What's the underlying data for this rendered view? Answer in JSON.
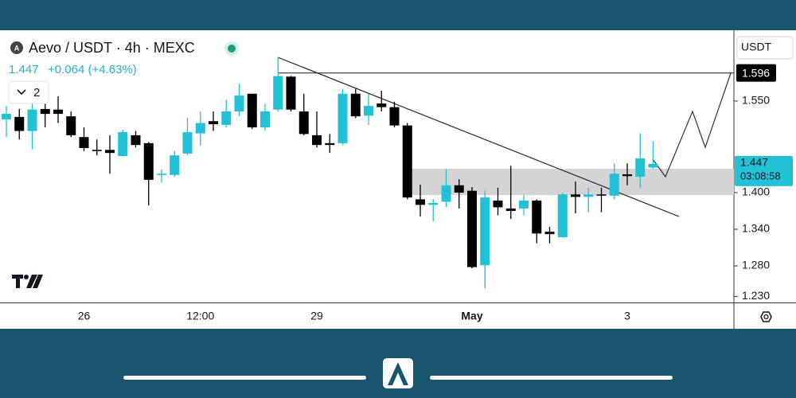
{
  "chart_data": {
    "type": "candlestick",
    "title": "Aevo / USDT · 4h · MEXC",
    "last_price": "1.447",
    "change": "+0.064 (+4.63%)",
    "indicator_count": "2",
    "currency": "USDT",
    "countdown": "03:08:58",
    "up_color": "#22c1d6",
    "down_color": "#000000",
    "categories": [
      null,
      null,
      null,
      null,
      null,
      null,
      "26",
      null,
      null,
      null,
      null,
      null,
      null,
      null,
      null,
      "12:00",
      null,
      null,
      null,
      null,
      null,
      null,
      null,
      null,
      "29",
      null,
      null,
      null,
      null,
      null,
      null,
      null,
      null,
      null,
      null,
      null,
      "May",
      null,
      null,
      null,
      null,
      null,
      null,
      null,
      null,
      null,
      null,
      null,
      "3",
      null,
      null
    ],
    "open": [
      1.52,
      1.524,
      1.501,
      1.537,
      1.536,
      1.525,
      1.491,
      1.47,
      1.47,
      1.46,
      1.494,
      1.481,
      1.429,
      1.429,
      1.464,
      1.497,
      1.517,
      1.511,
      1.533,
      1.562,
      1.507,
      1.536,
      1.59,
      1.533,
      1.494,
      1.481,
      1.481,
      1.562,
      1.526,
      1.546,
      1.54,
      1.51,
      1.389,
      1.38,
      1.385,
      1.412,
      1.403,
      1.281,
      1.387,
      1.374,
      1.374,
      1.387,
      1.336,
      1.327,
      1.397,
      1.393,
      1.397,
      1.395,
      1.43,
      1.426,
      1.441
    ],
    "high": [
      1.542,
      1.537,
      1.549,
      1.549,
      1.558,
      1.533,
      1.507,
      1.487,
      1.494,
      1.503,
      1.501,
      1.483,
      1.438,
      1.468,
      1.523,
      1.533,
      1.533,
      1.552,
      1.578,
      1.562,
      1.546,
      1.622,
      1.591,
      1.562,
      1.533,
      1.496,
      1.57,
      1.57,
      1.562,
      1.567,
      1.549,
      1.514,
      1.413,
      1.389,
      1.438,
      1.422,
      1.409,
      1.403,
      1.408,
      1.444,
      1.396,
      1.389,
      1.344,
      1.4,
      1.418,
      1.408,
      1.408,
      1.448,
      1.448,
      1.497,
      1.484
    ],
    "low": [
      1.491,
      1.487,
      1.471,
      1.507,
      1.514,
      1.491,
      1.468,
      1.461,
      1.431,
      1.459,
      1.474,
      1.379,
      1.416,
      1.426,
      1.461,
      1.477,
      1.501,
      1.507,
      1.525,
      1.504,
      1.501,
      1.533,
      1.533,
      1.494,
      1.474,
      1.465,
      1.478,
      1.522,
      1.511,
      1.533,
      1.507,
      1.389,
      1.361,
      1.353,
      1.376,
      1.374,
      1.276,
      1.243,
      1.363,
      1.357,
      1.363,
      1.317,
      1.317,
      1.326,
      1.366,
      1.368,
      1.368,
      1.389,
      1.412,
      1.408,
      1.439
    ],
    "close": [
      1.529,
      1.501,
      1.536,
      1.529,
      1.529,
      1.494,
      1.473,
      1.468,
      1.465,
      1.499,
      1.478,
      1.421,
      1.431,
      1.461,
      1.499,
      1.514,
      1.512,
      1.533,
      1.559,
      1.507,
      1.533,
      1.591,
      1.536,
      1.496,
      1.478,
      1.478,
      1.562,
      1.525,
      1.542,
      1.54,
      1.51,
      1.392,
      1.38,
      1.383,
      1.412,
      1.4,
      1.278,
      1.392,
      1.376,
      1.37,
      1.387,
      1.333,
      1.332,
      1.397,
      1.393,
      1.397,
      1.395,
      1.431,
      1.427,
      1.456,
      1.447
    ],
    "ylim": [
      1.22,
      1.666
    ],
    "yticks": [
      {
        "value": 1.55,
        "label": "1.550"
      },
      {
        "value": 1.4,
        "label": "1.400"
      },
      {
        "value": 1.34,
        "label": "1.340"
      },
      {
        "value": 1.28,
        "label": "1.280"
      },
      {
        "value": 1.23,
        "label": "1.230"
      }
    ],
    "price_markers": [
      {
        "value": 1.596,
        "label": "1.596",
        "color": "#000000"
      },
      {
        "value": 1.447,
        "label": "1.447",
        "color": "#22c1d6"
      }
    ],
    "grid": false
  }
}
